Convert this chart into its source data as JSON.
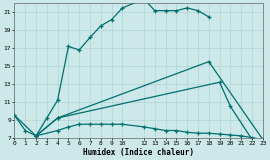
{
  "xlabel": "Humidex (Indice chaleur)",
  "bg_color": "#cce8e8",
  "line_color": "#007070",
  "xlim": [
    0,
    23
  ],
  "ylim": [
    7,
    22
  ],
  "xticks": [
    0,
    1,
    2,
    3,
    4,
    5,
    6,
    7,
    8,
    9,
    10,
    12,
    13,
    14,
    15,
    16,
    17,
    18,
    19,
    20,
    21,
    22,
    23
  ],
  "yticks": [
    7,
    9,
    11,
    13,
    15,
    17,
    19,
    21
  ],
  "lines": [
    {
      "x": [
        0,
        1,
        2,
        3,
        4,
        5,
        6,
        7,
        8,
        9,
        10,
        12,
        13,
        14,
        15,
        16,
        17,
        18
      ],
      "y": [
        9.5,
        7.8,
        7.2,
        9.2,
        11.2,
        17.2,
        16.8,
        18.2,
        19.5,
        20.2,
        21.5,
        22.5,
        21.2,
        21.2,
        21.2,
        21.5,
        21.2,
        20.5
      ]
    },
    {
      "x": [
        2,
        4,
        18,
        23
      ],
      "y": [
        7.2,
        9.2,
        15.5,
        6.8
      ]
    },
    {
      "x": [
        2,
        4,
        19,
        20,
        22
      ],
      "y": [
        7.2,
        9.2,
        13.2,
        10.5,
        6.8
      ]
    },
    {
      "x": [
        0,
        2,
        4,
        5,
        6,
        7,
        8,
        9,
        10,
        12,
        13,
        14,
        15,
        16,
        17,
        18,
        19,
        20,
        21,
        22,
        23
      ],
      "y": [
        9.5,
        7.2,
        7.8,
        8.2,
        8.5,
        8.5,
        8.5,
        8.5,
        8.5,
        8.2,
        8.0,
        7.8,
        7.8,
        7.6,
        7.5,
        7.5,
        7.4,
        7.3,
        7.2,
        7.0,
        6.8
      ]
    }
  ]
}
